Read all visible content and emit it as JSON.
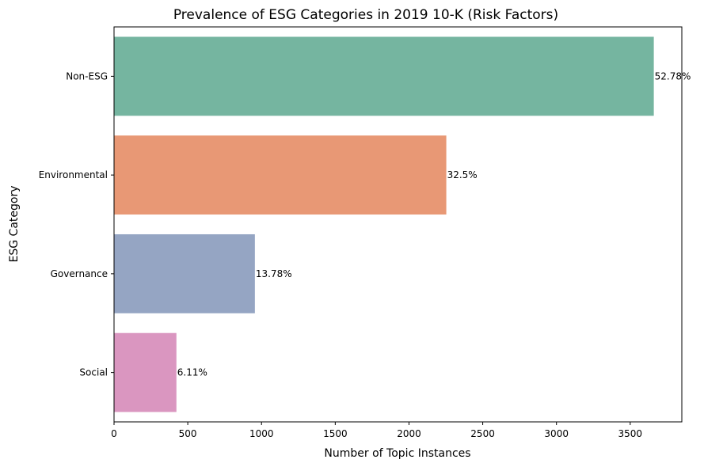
{
  "chart_data": {
    "type": "bar",
    "orientation": "horizontal",
    "title": "Prevalence of ESG Categories in 2019 10-K (Risk Factors)",
    "xlabel": "Number of Topic Instances",
    "ylabel": "ESG Category",
    "categories": [
      "Non-ESG",
      "Environmental",
      "Governance",
      "Social"
    ],
    "values": [
      3660,
      2253,
      955,
      423
    ],
    "data_labels": [
      "52.78%",
      "32.5%",
      "13.78%",
      "6.11%"
    ],
    "colors": [
      "#75b5a0",
      "#e89875",
      "#95a5c3",
      "#da96c0"
    ],
    "xlim": [
      0,
      3850
    ],
    "xticks": [
      0,
      500,
      1000,
      1500,
      2000,
      2500,
      3000,
      3500
    ],
    "xtick_labels": [
      "0",
      "500",
      "1000",
      "1500",
      "2000",
      "2500",
      "3000",
      "3500"
    ],
    "grid": false,
    "legend": "none"
  }
}
